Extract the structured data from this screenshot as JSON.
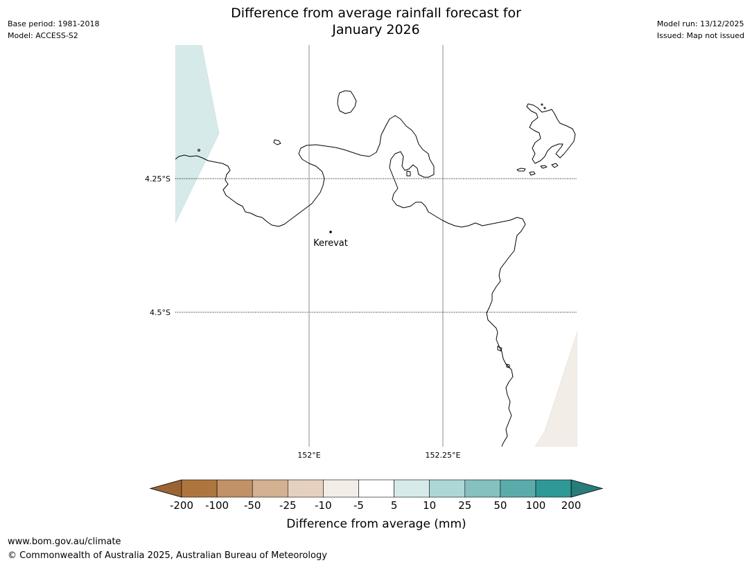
{
  "title": [
    "Difference from average rainfall forecast for",
    "January 2026"
  ],
  "meta_left": [
    "Base period: 1981-2018",
    "Model: ACCESS-S2"
  ],
  "meta_right": [
    "Model run: 13/12/2025",
    "Issued: Map not issued"
  ],
  "map": {
    "latitude_lines": [
      "4.25°S",
      "4.5°S"
    ],
    "longitude_lines": [
      "152°E",
      "152.25°E"
    ],
    "places": [
      {
        "name": "Kerevat"
      }
    ]
  },
  "colorbar": {
    "label": "Difference from average (mm)",
    "ticks": [
      "-200",
      "-100",
      "-50",
      "-25",
      "-10",
      "-5",
      "5",
      "10",
      "25",
      "50",
      "100",
      "200"
    ],
    "colors": [
      "#9a6433",
      "#ae763e",
      "#c19267",
      "#d3b191",
      "#e6d1bf",
      "#f3ede8",
      "#ffffff",
      "#d6eaea",
      "#add7d6",
      "#84c1bf",
      "#5aacab",
      "#2f9997",
      "#287c7b"
    ]
  },
  "footer": {
    "url": "www.bom.gov.au/climate",
    "copyright": "© Commonwealth of Australia 2025, Australian Bureau of Meteorology"
  }
}
